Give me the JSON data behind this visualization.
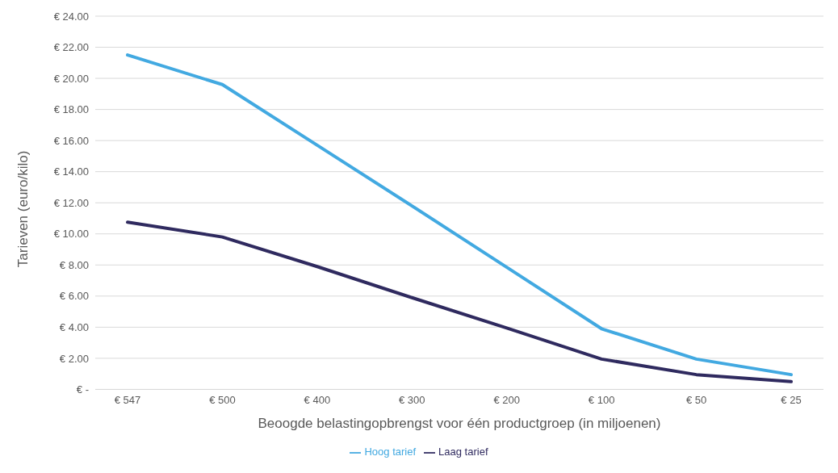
{
  "chart_data": {
    "type": "line",
    "xlabel": "Beoogde belastingopbrengst voor één productgroep (in miljoenen)",
    "ylabel": "Tarieven (euro/kilo)",
    "categories": [
      "€ 547",
      "€ 500",
      "€ 400",
      "€ 300",
      "€ 200",
      "€ 100",
      "€ 50",
      "€ 25"
    ],
    "series": [
      {
        "name": "Laag tarief",
        "color": "#2f2a5f",
        "values": [
          10.75,
          9.8,
          7.9,
          5.9,
          3.95,
          1.95,
          0.95,
          0.5
        ]
      },
      {
        "name": "Hoog tarief",
        "color": "#42a9e1",
        "values": [
          21.5,
          19.6,
          15.7,
          11.8,
          7.85,
          3.9,
          1.95,
          0.95
        ]
      }
    ],
    "ylim": [
      0,
      24
    ],
    "yticks": [
      {
        "value": 0,
        "label": "€ -"
      },
      {
        "value": 2,
        "label": "€ 2.00"
      },
      {
        "value": 4,
        "label": "€ 4.00"
      },
      {
        "value": 6,
        "label": "€ 6.00"
      },
      {
        "value": 8,
        "label": "€ 8.00"
      },
      {
        "value": 10,
        "label": "€ 10.00"
      },
      {
        "value": 12,
        "label": "€ 12.00"
      },
      {
        "value": 14,
        "label": "€ 14.00"
      },
      {
        "value": 16,
        "label": "€ 16.00"
      },
      {
        "value": 18,
        "label": "€ 18.00"
      },
      {
        "value": 20,
        "label": "€ 20.00"
      },
      {
        "value": 22,
        "label": "€ 22.00"
      },
      {
        "value": 24,
        "label": "€ 24.00"
      }
    ],
    "grid": "y",
    "legend": "bottom",
    "marker": "none",
    "line_style": "solid"
  }
}
